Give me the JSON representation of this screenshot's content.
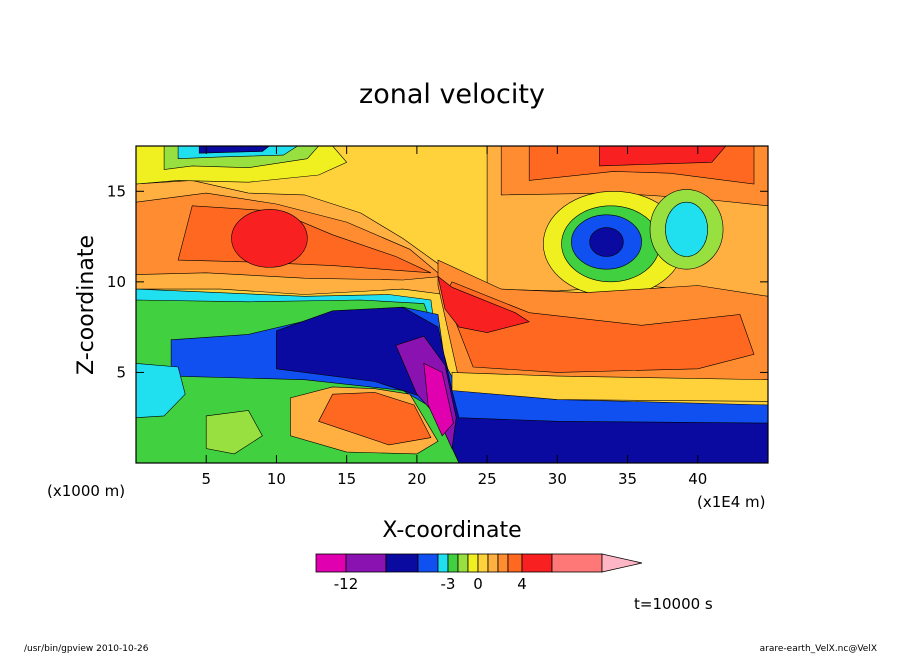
{
  "chart_data": {
    "type": "heatmap",
    "title": "zonal velocity",
    "xlabel": "X-coordinate",
    "ylabel": "Z-coordinate",
    "x_units": "(x1E4 m)",
    "y_units": "(x1000 m)",
    "xlim": [
      0,
      45
    ],
    "ylim": [
      0,
      17.5
    ],
    "x_ticks": [
      5,
      10,
      15,
      20,
      25,
      30,
      35,
      40
    ],
    "y_ticks": [
      5,
      10,
      15
    ],
    "colorbar": {
      "levels": [
        -14,
        -12,
        -10,
        -6,
        -4,
        -3,
        -2,
        -1,
        0,
        1,
        2,
        3,
        4,
        6,
        10
      ],
      "colors": [
        "#e000b0",
        "#8a12b0",
        "#0a0aa0",
        "#1050f0",
        "#20e0f0",
        "#40d040",
        "#98e040",
        "#f0f020",
        "#ffd23c",
        "#ffb040",
        "#ff8c30",
        "#ff6820",
        "#f82020",
        "#ff7878",
        "#ffb6c4"
      ],
      "tick_labels": [
        {
          "value": -12,
          "label": "-12"
        },
        {
          "value": -3,
          "label": "-3"
        },
        {
          "value": 0,
          "label": "0"
        },
        {
          "value": 4,
          "label": "4"
        }
      ]
    },
    "annotation": "t=10000 s"
  },
  "footer": {
    "left": "/usr/bin/gpview   2010-10-26",
    "right": "arare-earth_VelX.nc@VelX"
  }
}
